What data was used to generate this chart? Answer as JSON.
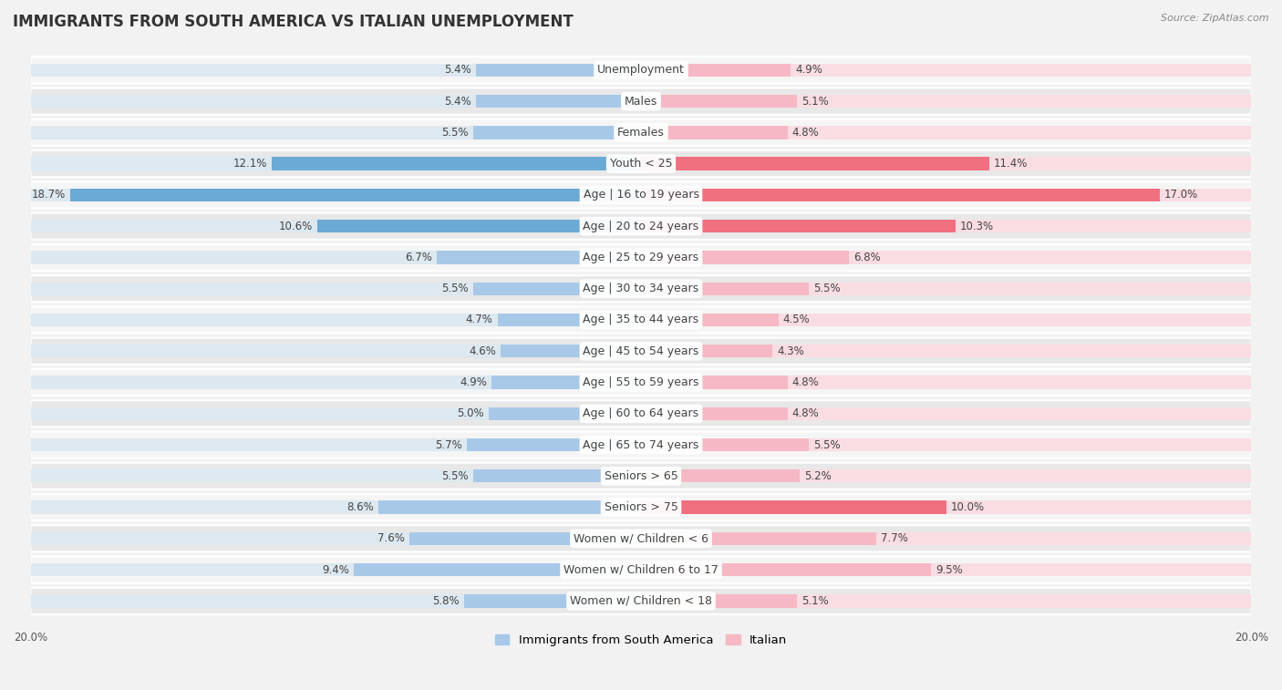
{
  "title": "IMMIGRANTS FROM SOUTH AMERICA VS ITALIAN UNEMPLOYMENT",
  "source": "Source: ZipAtlas.com",
  "categories": [
    "Unemployment",
    "Males",
    "Females",
    "Youth < 25",
    "Age | 16 to 19 years",
    "Age | 20 to 24 years",
    "Age | 25 to 29 years",
    "Age | 30 to 34 years",
    "Age | 35 to 44 years",
    "Age | 45 to 54 years",
    "Age | 55 to 59 years",
    "Age | 60 to 64 years",
    "Age | 65 to 74 years",
    "Seniors > 65",
    "Seniors > 75",
    "Women w/ Children < 6",
    "Women w/ Children 6 to 17",
    "Women w/ Children < 18"
  ],
  "south_america": [
    5.4,
    5.4,
    5.5,
    12.1,
    18.7,
    10.6,
    6.7,
    5.5,
    4.7,
    4.6,
    4.9,
    5.0,
    5.7,
    5.5,
    8.6,
    7.6,
    9.4,
    5.8
  ],
  "italian": [
    4.9,
    5.1,
    4.8,
    11.4,
    17.0,
    10.3,
    6.8,
    5.5,
    4.5,
    4.3,
    4.8,
    4.8,
    5.5,
    5.2,
    10.0,
    7.7,
    9.5,
    5.1
  ],
  "sa_color_normal": "#a8c8e8",
  "sa_color_highlight": "#6aaad4",
  "it_color_normal": "#f5b8c4",
  "it_color_highlight": "#f07080",
  "track_color": "#dde8f0",
  "track_color_right": "#f9dde2",
  "max_val": 20.0,
  "row_colors": [
    "#f5f5f5",
    "#e8e8e8"
  ],
  "title_fontsize": 12,
  "label_fontsize": 9,
  "value_fontsize": 8.5,
  "legend_fontsize": 9.5
}
